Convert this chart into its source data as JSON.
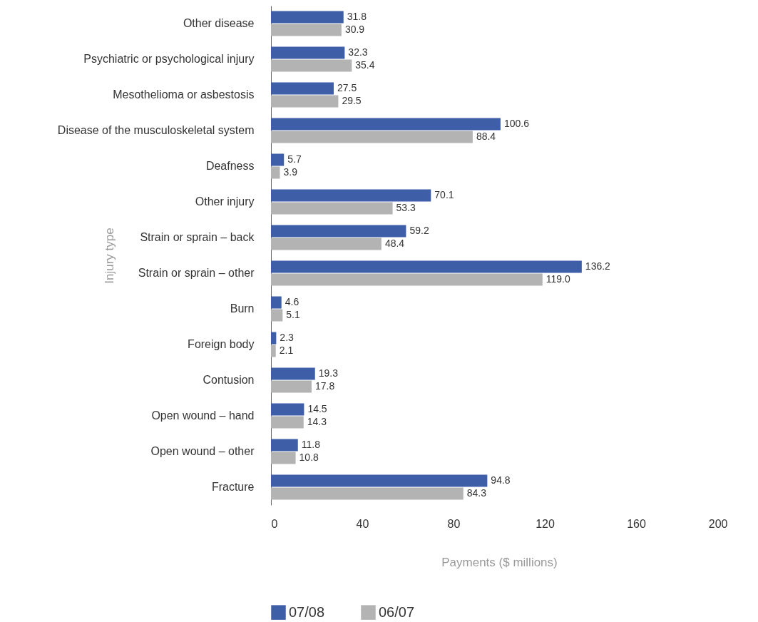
{
  "chart_data": {
    "type": "bar",
    "orientation": "horizontal",
    "xlabel": "Payments ($ millions)",
    "ylabel": "Injury type",
    "categories": [
      "Other disease",
      "Psychiatric or psychological injury",
      "Mesothelioma or asbestosis",
      "Disease of the musculoskeletal system",
      "Deafness",
      "Other injury",
      "Strain or sprain – back",
      "Strain or sprain – other",
      "Burn",
      "Foreign body",
      "Contusion",
      "Open wound – hand",
      "Open wound – other",
      "Fracture"
    ],
    "series": [
      {
        "name": "07/08",
        "color": "#3f5ea8",
        "values": [
          31.8,
          32.3,
          27.5,
          100.6,
          5.7,
          70.1,
          59.2,
          136.2,
          4.6,
          2.3,
          19.3,
          14.5,
          11.8,
          94.8
        ],
        "value_labels": [
          "31.8",
          "32.3",
          "27.5",
          "100.6",
          "5.7",
          "70.1",
          "59.2",
          "136.2",
          "4.6",
          "2.3",
          "19.3",
          "14.5",
          "11.8",
          "94.8"
        ]
      },
      {
        "name": "06/07",
        "color": "#b3b3b3",
        "values": [
          30.9,
          35.4,
          29.5,
          88.4,
          3.9,
          53.3,
          48.4,
          119.0,
          5.1,
          2.1,
          17.8,
          14.3,
          10.8,
          84.3
        ],
        "value_labels": [
          "30.9",
          "35.4",
          "29.5",
          "88.4",
          "3.9",
          "53.3",
          "48.4",
          "119.0",
          "5.1",
          "2.1",
          "17.8",
          "14.3",
          "10.8",
          "84.3"
        ]
      }
    ],
    "xlim": [
      0,
      200
    ],
    "xticks": [
      0,
      40,
      80,
      120,
      160,
      200
    ],
    "legend": "bottom"
  }
}
